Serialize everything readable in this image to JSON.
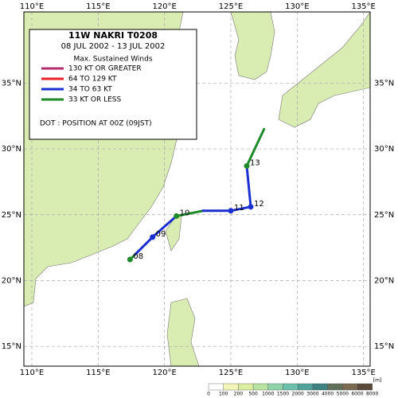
{
  "map": {
    "title": "11W  NAKRI  T0208",
    "period": "08 JUL 2002 - 13 JUL 2002",
    "legend_heading": "Max. Sustained Winds",
    "legend": [
      {
        "name": "130 KT OR GREATER",
        "color": "#b0306e"
      },
      {
        "name": "64 TO 129 KT",
        "color": "#e8202a"
      },
      {
        "name": "34 TO 63 KT",
        "color": "#1a2fd0"
      },
      {
        "name": "33 KT OR LESS",
        "color": "#1f8a2a"
      }
    ],
    "dot_note": "DOT : POSITION AT 00Z (09JST)",
    "xlim": [
      109.4,
      135.5
    ],
    "ylim": [
      13.5,
      40.4
    ],
    "xticks": [
      {
        "value": 110,
        "label": "110°E"
      },
      {
        "value": 115,
        "label": "115°E"
      },
      {
        "value": 120,
        "label": "120°E"
      },
      {
        "value": 125,
        "label": "125°E"
      },
      {
        "value": 130,
        "label": "130°E"
      },
      {
        "value": 135,
        "label": "135°E"
      }
    ],
    "yticks": [
      {
        "value": 15,
        "label": "15°N"
      },
      {
        "value": 20,
        "label": "20°N"
      },
      {
        "value": 25,
        "label": "25°N"
      },
      {
        "value": 30,
        "label": "30°N"
      },
      {
        "value": 35,
        "label": "35°N"
      }
    ],
    "grid": true,
    "track": {
      "lon": [
        117.4,
        117.8,
        119.1,
        120.9,
        122.9,
        125.0,
        126.5,
        126.2,
        127.5
      ],
      "lat": [
        21.6,
        22.0,
        23.3,
        24.9,
        25.3,
        25.3,
        25.6,
        28.7,
        31.5
      ],
      "labels": [
        "08",
        null,
        "09",
        "10",
        null,
        "11",
        "12",
        "13",
        null
      ],
      "leg_colors": [
        "#1f8a2a",
        "#1a2fd0",
        "#1a2fd0",
        "#1f8a2a",
        "#1a2fd0",
        "#1a2fd0",
        "#1a2fd0",
        "#1f8a2a"
      ]
    },
    "colorbar": {
      "ticks": [
        "0",
        "100",
        "200",
        "500",
        "1000",
        "1500",
        "2000",
        "3000",
        "4000",
        "5000",
        "6000",
        "8000"
      ],
      "colors": [
        "#ffffff",
        "#f2f7b8",
        "#dcefa0",
        "#b8e3a0",
        "#8fd3a8",
        "#6cbfa8",
        "#4fa29a",
        "#3f8080",
        "#5f6f5a",
        "#7a6a50",
        "#5a4a38"
      ],
      "unit": "[m]"
    }
  }
}
